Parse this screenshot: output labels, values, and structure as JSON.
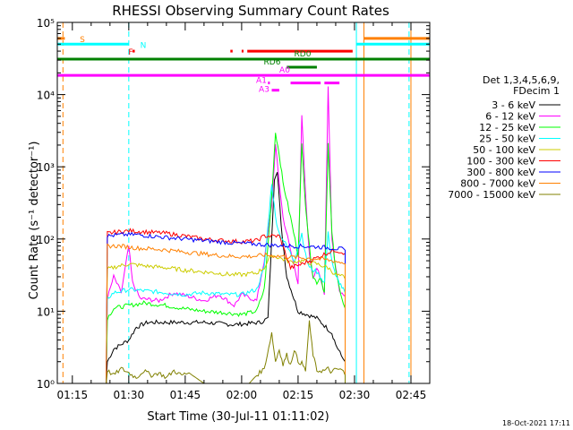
{
  "chart_data": {
    "type": "line",
    "title": "RHESSI Observing Summary Count Rates",
    "xlabel": "Start Time (30-Jul-11 01:11:02)",
    "ylabel": "Count Rate (s⁻¹ detector⁻¹)",
    "yscale": "log",
    "ylim": [
      1,
      100000
    ],
    "xlim_minutes": [
      71,
      170
    ],
    "x_ticks": [
      {
        "m": 75,
        "label": "01:15"
      },
      {
        "m": 90,
        "label": "01:30"
      },
      {
        "m": 105,
        "label": "01:45"
      },
      {
        "m": 120,
        "label": "02:00"
      },
      {
        "m": 135,
        "label": "02:15"
      },
      {
        "m": 150,
        "label": "02:30"
      },
      {
        "m": 165,
        "label": "02:45"
      }
    ],
    "y_ticks": [
      {
        "v": 1,
        "label": "10⁰"
      },
      {
        "v": 10,
        "label": "10¹"
      },
      {
        "v": 100,
        "label": "10²"
      },
      {
        "v": 1000,
        "label": "10³"
      },
      {
        "v": 10000,
        "label": "10⁴"
      },
      {
        "v": 100000,
        "label": "10⁵"
      }
    ],
    "legend_header": [
      "Det 1,3,4,5,6,9,",
      "FDecim 1"
    ],
    "legend_position": "right",
    "series": [
      {
        "name": "3 - 6 keV",
        "color": "#000000",
        "points": [
          [
            84,
            1
          ],
          [
            84.3,
            2
          ],
          [
            86,
            3
          ],
          [
            90,
            4
          ],
          [
            92,
            6
          ],
          [
            95,
            7
          ],
          [
            100,
            7
          ],
          [
            110,
            7
          ],
          [
            118,
            6.5
          ],
          [
            125,
            7
          ],
          [
            127,
            8
          ],
          [
            128,
            100
          ],
          [
            128.7,
            700
          ],
          [
            129.5,
            900
          ],
          [
            130.5,
            150
          ],
          [
            132,
            30
          ],
          [
            135,
            10
          ],
          [
            140,
            8
          ],
          [
            144,
            5
          ],
          [
            145,
            3.5
          ],
          [
            146.5,
            2.4
          ],
          [
            147,
            2.2
          ],
          [
            147.5,
            2
          ],
          [
            147.5,
            1
          ]
        ]
      },
      {
        "name": "6 - 12 keV",
        "color": "#ff00ff",
        "points": [
          [
            84,
            1
          ],
          [
            84.3,
            15
          ],
          [
            86,
            30
          ],
          [
            88,
            18
          ],
          [
            90,
            80
          ],
          [
            91,
            25
          ],
          [
            93,
            15
          ],
          [
            98,
            14
          ],
          [
            102,
            18
          ],
          [
            106,
            16
          ],
          [
            110,
            14
          ],
          [
            114,
            17
          ],
          [
            118,
            12
          ],
          [
            120,
            17
          ],
          [
            124,
            14
          ],
          [
            126,
            50
          ],
          [
            128,
            300
          ],
          [
            129,
            2000
          ],
          [
            130,
            600
          ],
          [
            131,
            200
          ],
          [
            133,
            70
          ],
          [
            135,
            25
          ],
          [
            136,
            5000
          ],
          [
            137,
            400
          ],
          [
            138,
            60
          ],
          [
            139,
            30
          ],
          [
            140,
            40
          ],
          [
            142,
            18
          ],
          [
            143,
            13000
          ],
          [
            144,
            100
          ],
          [
            145,
            40
          ],
          [
            146,
            20
          ],
          [
            147,
            17
          ],
          [
            147.5,
            16
          ],
          [
            147.5,
            1
          ]
        ]
      },
      {
        "name": "12 - 25 keV",
        "color": "#00ff00",
        "points": [
          [
            84,
            1
          ],
          [
            84.3,
            8
          ],
          [
            86,
            11
          ],
          [
            90,
            12
          ],
          [
            94,
            13
          ],
          [
            100,
            12
          ],
          [
            104,
            11
          ],
          [
            110,
            10
          ],
          [
            116,
            9.5
          ],
          [
            120,
            9
          ],
          [
            124,
            10
          ],
          [
            126,
            20
          ],
          [
            127,
            80
          ],
          [
            128,
            400
          ],
          [
            129,
            3000
          ],
          [
            130,
            1500
          ],
          [
            131,
            600
          ],
          [
            133,
            200
          ],
          [
            135,
            60
          ],
          [
            136,
            2000
          ],
          [
            137,
            300
          ],
          [
            138,
            80
          ],
          [
            139,
            30
          ],
          [
            140,
            25
          ],
          [
            141,
            30
          ],
          [
            142,
            18
          ],
          [
            143,
            2000
          ],
          [
            144,
            120
          ],
          [
            145,
            40
          ],
          [
            146,
            20
          ],
          [
            147,
            12
          ],
          [
            147.5,
            11
          ],
          [
            147.5,
            1
          ]
        ]
      },
      {
        "name": "25 - 50 keV",
        "color": "#00ffff",
        "points": [
          [
            84,
            1
          ],
          [
            84.3,
            15
          ],
          [
            86,
            18
          ],
          [
            90,
            20
          ],
          [
            95,
            19
          ],
          [
            100,
            18
          ],
          [
            105,
            17
          ],
          [
            110,
            18
          ],
          [
            116,
            17
          ],
          [
            120,
            17
          ],
          [
            124,
            20
          ],
          [
            126,
            40
          ],
          [
            127,
            150
          ],
          [
            128,
            600
          ],
          [
            129,
            200
          ],
          [
            130,
            120
          ],
          [
            132,
            80
          ],
          [
            134,
            50
          ],
          [
            136,
            120
          ],
          [
            137,
            60
          ],
          [
            138,
            40
          ],
          [
            140,
            35
          ],
          [
            142,
            25
          ],
          [
            143,
            120
          ],
          [
            144,
            50
          ],
          [
            145,
            30
          ],
          [
            146,
            25
          ],
          [
            147,
            20
          ],
          [
            147.5,
            18
          ],
          [
            147.5,
            1
          ]
        ]
      },
      {
        "name": "50 - 100 keV",
        "color": "#cccc00",
        "points": [
          [
            84,
            1
          ],
          [
            84.3,
            38
          ],
          [
            87,
            42
          ],
          [
            90,
            45
          ],
          [
            95,
            42
          ],
          [
            100,
            40
          ],
          [
            105,
            37
          ],
          [
            110,
            35
          ],
          [
            115,
            33
          ],
          [
            118,
            32
          ],
          [
            120,
            32
          ],
          [
            124,
            34
          ],
          [
            126,
            40
          ],
          [
            128,
            60
          ],
          [
            130,
            55
          ],
          [
            133,
            48
          ],
          [
            136,
            50
          ],
          [
            140,
            45
          ],
          [
            143,
            40
          ],
          [
            145,
            32
          ],
          [
            147,
            30
          ],
          [
            147.5,
            28
          ],
          [
            147.5,
            1
          ]
        ]
      },
      {
        "name": "100 - 300 keV",
        "color": "#ff0000",
        "points": [
          [
            84,
            1
          ],
          [
            84.3,
            120
          ],
          [
            87,
            125
          ],
          [
            90,
            130
          ],
          [
            95,
            125
          ],
          [
            100,
            120
          ],
          [
            105,
            110
          ],
          [
            110,
            100
          ],
          [
            115,
            95
          ],
          [
            120,
            92
          ],
          [
            124,
            95
          ],
          [
            126,
            110
          ],
          [
            130,
            110
          ],
          [
            133,
            40
          ],
          [
            136,
            45
          ],
          [
            140,
            55
          ],
          [
            143,
            65
          ],
          [
            145,
            70
          ],
          [
            147,
            65
          ],
          [
            147.5,
            63
          ],
          [
            147.5,
            1
          ]
        ]
      },
      {
        "name": "300 - 800 keV",
        "color": "#0000ff",
        "points": [
          [
            84,
            1
          ],
          [
            84.3,
            110
          ],
          [
            88,
            115
          ],
          [
            92,
            115
          ],
          [
            100,
            105
          ],
          [
            110,
            95
          ],
          [
            118,
            88
          ],
          [
            124,
            85
          ],
          [
            128,
            82
          ],
          [
            134,
            80
          ],
          [
            140,
            78
          ],
          [
            144,
            75
          ],
          [
            147,
            72
          ],
          [
            147.5,
            70
          ],
          [
            147.5,
            1
          ]
        ]
      },
      {
        "name": "800 - 7000 keV",
        "color": "#ff8000",
        "points": [
          [
            84,
            1
          ],
          [
            84.3,
            80
          ],
          [
            88,
            80
          ],
          [
            92,
            75
          ],
          [
            98,
            72
          ],
          [
            104,
            67
          ],
          [
            110,
            62
          ],
          [
            116,
            58
          ],
          [
            120,
            57
          ],
          [
            124,
            58
          ],
          [
            126,
            60
          ],
          [
            130,
            58
          ],
          [
            134,
            56
          ],
          [
            138,
            54
          ],
          [
            142,
            52
          ],
          [
            144,
            50
          ],
          [
            147,
            47
          ],
          [
            147.5,
            45
          ],
          [
            147.5,
            1
          ]
        ]
      },
      {
        "name": "7000 - 15000 keV",
        "color": "#808000",
        "points": [
          [
            84,
            1
          ],
          [
            84.3,
            1.5
          ],
          [
            86,
            1.3
          ],
          [
            88,
            1.6
          ],
          [
            90,
            1.4
          ],
          [
            92,
            1.2
          ],
          [
            94,
            1.5
          ],
          [
            96,
            1.3
          ],
          [
            98,
            1.4
          ],
          [
            100,
            1.2
          ],
          [
            102,
            1.5
          ],
          [
            104,
            1.3
          ],
          [
            106,
            1.4
          ],
          [
            110,
            1
          ],
          [
            114,
            1
          ],
          [
            118,
            1
          ],
          [
            122,
            1
          ],
          [
            124,
            1.3
          ],
          [
            126,
            1.6
          ],
          [
            128,
            5
          ],
          [
            129,
            2
          ],
          [
            130,
            3
          ],
          [
            131,
            1.8
          ],
          [
            132,
            2.5
          ],
          [
            133,
            1.8
          ],
          [
            134,
            3
          ],
          [
            135,
            2
          ],
          [
            136,
            1.9
          ],
          [
            137,
            1.5
          ],
          [
            138,
            7
          ],
          [
            139,
            2.5
          ],
          [
            140,
            1.5
          ],
          [
            142,
            1.5
          ],
          [
            143,
            1.6
          ],
          [
            144,
            1.4
          ],
          [
            145,
            1.6
          ],
          [
            147,
            1.5
          ],
          [
            147.5,
            1.3
          ],
          [
            147.5,
            1
          ]
        ]
      }
    ],
    "flag_bars": [
      {
        "label": "S",
        "color": "#ff8000",
        "y": 60000,
        "segments": [
          [
            71,
            73
          ]
        ]
      },
      {
        "label": "S",
        "color": "#ff8000",
        "y": 60000,
        "segments": [
          [
            152.5,
            170
          ]
        ]
      },
      {
        "label": "N",
        "color": "#00ffff",
        "y": 50000,
        "segments": [
          [
            71,
            90
          ],
          [
            150.5,
            170
          ]
        ]
      },
      {
        "label": "F",
        "color": "#ff0000",
        "y": 40000,
        "segments": [
          [
            91,
            91.6
          ],
          [
            117,
            117.6
          ],
          [
            120,
            120.5
          ],
          [
            121.5,
            149.5
          ]
        ]
      },
      {
        "label": "RD0",
        "color": "#008000",
        "y": 31000,
        "segments": [
          [
            71,
            170
          ]
        ]
      },
      {
        "label": "RD6",
        "color": "#008000",
        "y": 24000,
        "segments": [
          [
            132,
            140
          ]
        ]
      },
      {
        "label": "A0",
        "color": "#ff00ff",
        "y": 18500,
        "segments": [
          [
            71,
            170
          ]
        ]
      },
      {
        "label": "A1",
        "color": "#ff00ff",
        "y": 14500,
        "segments": [
          [
            127,
            127.5
          ],
          [
            133,
            141
          ],
          [
            142,
            146
          ]
        ]
      },
      {
        "label": "A3",
        "color": "#ff00ff",
        "y": 11500,
        "segments": [
          [
            128,
            130
          ]
        ]
      }
    ],
    "vertical_lines": [
      {
        "m": 72.5,
        "color": "#ff8000",
        "style": "dashed"
      },
      {
        "m": 90,
        "color": "#00ffff",
        "style": "dashed"
      },
      {
        "m": 150.5,
        "color": "#00ffff",
        "style": "solid"
      },
      {
        "m": 152.5,
        "color": "#ff8000",
        "style": "solid"
      },
      {
        "m": 164.5,
        "color": "#00ffff",
        "style": "dashed"
      },
      {
        "m": 165,
        "color": "#ff8000",
        "style": "solid"
      }
    ],
    "footer": "18-Oct-2021 17:11"
  }
}
